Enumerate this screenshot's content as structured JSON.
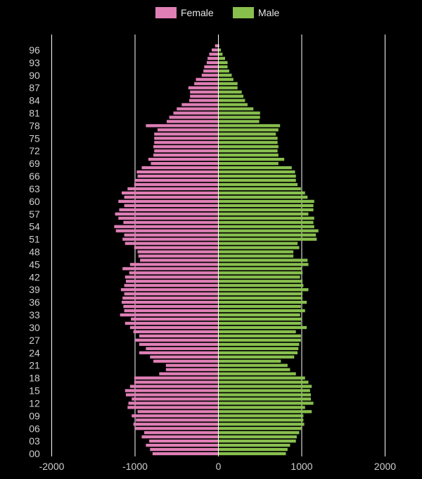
{
  "colors": {
    "background": "#000000",
    "female": "#e07fb6",
    "male": "#88c04e",
    "grid": "#ffffff",
    "text": "#cfcfcf"
  },
  "legend": {
    "items": [
      {
        "label": "Female",
        "color": "#e07fb6",
        "icon": "female-swatch"
      },
      {
        "label": "Male",
        "color": "#88c04e",
        "icon": "male-swatch"
      }
    ]
  },
  "chart_data": {
    "type": "bar",
    "orientation": "horizontal",
    "subtype": "population-pyramid",
    "title": "",
    "xlabel": "",
    "ylabel": "",
    "xlim": [
      -2000,
      2000
    ],
    "xticks": [
      "-2000",
      "-1000",
      "0",
      "1000",
      "2000"
    ],
    "xtick_values": [
      -2000,
      -1000,
      0,
      1000,
      2000
    ],
    "ytick_labels": [
      "00",
      "03",
      "06",
      "09",
      "12",
      "15",
      "18",
      "21",
      "24",
      "27",
      "30",
      "33",
      "36",
      "39",
      "42",
      "45",
      "48",
      "51",
      "54",
      "57",
      "60",
      "63",
      "66",
      "69",
      "72",
      "75",
      "78",
      "81",
      "84",
      "87",
      "90",
      "93",
      "96"
    ],
    "grid": "vertical",
    "legend_position": "top",
    "ages": [
      0,
      1,
      2,
      3,
      4,
      5,
      6,
      7,
      8,
      9,
      10,
      11,
      12,
      13,
      14,
      15,
      16,
      17,
      18,
      19,
      20,
      21,
      22,
      23,
      24,
      25,
      26,
      27,
      28,
      29,
      30,
      31,
      32,
      33,
      34,
      35,
      36,
      37,
      38,
      39,
      40,
      41,
      42,
      43,
      44,
      45,
      46,
      47,
      48,
      49,
      50,
      51,
      52,
      53,
      54,
      55,
      56,
      57,
      58,
      59,
      60,
      61,
      62,
      63,
      64,
      65,
      66,
      67,
      68,
      69,
      70,
      71,
      72,
      73,
      74,
      75,
      76,
      77,
      78,
      79,
      80,
      81,
      82,
      83,
      84,
      85,
      86,
      87,
      88,
      89,
      90,
      91,
      92,
      93,
      94,
      95,
      96,
      97
    ],
    "series": [
      {
        "name": "Female",
        "values": [
          -790,
          -820,
          -870,
          -830,
          -920,
          -890,
          -1000,
          -1020,
          -990,
          -1040,
          -970,
          -1090,
          -1080,
          -1040,
          -1110,
          -1120,
          -1060,
          -1010,
          -1010,
          -710,
          -630,
          -630,
          -780,
          -820,
          -950,
          -870,
          -950,
          -1000,
          -950,
          -1020,
          -1060,
          -1120,
          -1050,
          -1180,
          -1130,
          -1140,
          -1160,
          -1150,
          -1130,
          -1170,
          -1130,
          -1110,
          -1120,
          -1070,
          -1150,
          -1060,
          -940,
          -960,
          -970,
          -1010,
          -1120,
          -1150,
          -1130,
          -1230,
          -1250,
          -1140,
          -1200,
          -1240,
          -1190,
          -1130,
          -1200,
          -1130,
          -1160,
          -1090,
          -1010,
          -1000,
          -970,
          -980,
          -920,
          -810,
          -840,
          -780,
          -770,
          -780,
          -770,
          -770,
          -770,
          -730,
          -870,
          -620,
          -590,
          -540,
          -500,
          -440,
          -350,
          -340,
          -340,
          -360,
          -290,
          -270,
          -200,
          -180,
          -170,
          -140,
          -130,
          -110,
          -80,
          -40
        ]
      },
      {
        "name": "Male",
        "values": [
          810,
          830,
          860,
          930,
          940,
          970,
          1000,
          1030,
          1020,
          1020,
          1120,
          1040,
          1140,
          1110,
          1110,
          1100,
          1120,
          1080,
          1040,
          930,
          860,
          830,
          750,
          910,
          950,
          960,
          970,
          990,
          990,
          930,
          1060,
          990,
          1000,
          980,
          1040,
          990,
          1060,
          1010,
          1010,
          1080,
          1020,
          1010,
          980,
          1010,
          1000,
          1080,
          1070,
          900,
          900,
          970,
          950,
          1180,
          1170,
          1200,
          1150,
          1140,
          1150,
          1080,
          1140,
          1140,
          1150,
          1070,
          1040,
          990,
          950,
          930,
          930,
          920,
          880,
          720,
          790,
          720,
          710,
          720,
          710,
          710,
          690,
          720,
          740,
          490,
          500,
          500,
          420,
          350,
          320,
          300,
          280,
          230,
          230,
          180,
          160,
          130,
          110,
          110,
          80,
          50,
          30,
          10
        ]
      }
    ]
  }
}
